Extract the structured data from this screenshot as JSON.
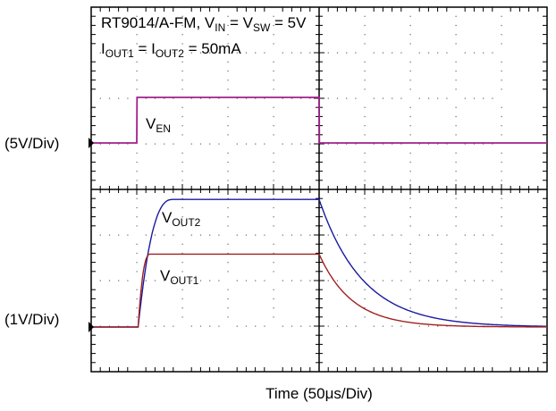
{
  "chart_data": {
    "type": "line",
    "title_line1": {
      "main": "RT9014/A-FM, V",
      "sub_in": "IN",
      "eq": " = V",
      "sub_sw": "SW",
      "tail": " = 5V"
    },
    "title_line2": {
      "i1": "I",
      "sub_out1": "OUT1",
      "eq": " = I",
      "sub_out2": "OUT2",
      "tail": " = 50mA"
    },
    "xlabel": "Time  (50μs/Div)",
    "channels": [
      {
        "scale_label": "(5V/Div)"
      },
      {
        "scale_label": "(1V/Div)"
      }
    ],
    "x_divisions": 10,
    "y_divisions": 8,
    "x": [
      -50,
      0,
      0.3,
      200,
      200.3,
      450
    ],
    "series": [
      {
        "name_main": "V",
        "name_sub": "EN",
        "color": "#a0208a",
        "points": [
          [
            -50,
            0
          ],
          [
            0,
            0
          ],
          [
            0.3,
            5
          ],
          [
            200,
            5
          ],
          [
            200.3,
            0
          ],
          [
            450,
            0
          ]
        ]
      },
      {
        "name_main": "V",
        "name_sub": "OUT2",
        "color": "#1a1aa0",
        "rise_start_us": 1.5,
        "rise_end_us": 40,
        "high_v": 2.8,
        "fall_tau_us": 48
      },
      {
        "name_main": "V",
        "name_sub": "OUT1",
        "color": "#a02020",
        "rise_start_us": 1.5,
        "rise_end_us": 15,
        "high_v": 1.6,
        "fall_tau_us": 36
      }
    ]
  }
}
